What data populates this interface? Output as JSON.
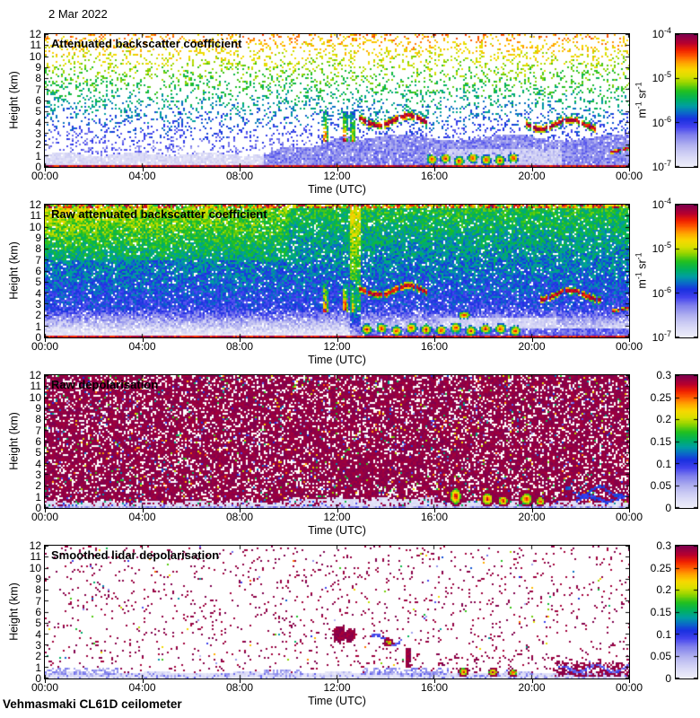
{
  "page": {
    "date_label": "2 Mar 2022",
    "footer_label": "Vehmasmaki CL61D ceilometer",
    "background_color": "#ffffff",
    "axis_color": "#000000"
  },
  "axes": {
    "time_label": "Time (UTC)",
    "time_ticks": [
      "00:00",
      "04:00",
      "08:00",
      "12:00",
      "16:00",
      "20:00",
      "00:00"
    ],
    "time_range_hours": [
      0,
      24
    ],
    "height_label": "Height (km)",
    "height_ticks": [
      "0",
      "1",
      "2",
      "3",
      "4",
      "5",
      "6",
      "7",
      "8",
      "9",
      "10",
      "11",
      "12"
    ],
    "height_range_km": [
      0,
      12
    ]
  },
  "colormap": [
    {
      "at": 0.0,
      "color": "#F0F0FA"
    },
    {
      "at": 0.08,
      "color": "#D8D8F6"
    },
    {
      "at": 0.16,
      "color": "#B4B4F0"
    },
    {
      "at": 0.24,
      "color": "#8080EC"
    },
    {
      "at": 0.3,
      "color": "#4444EE"
    },
    {
      "at": 0.36,
      "color": "#1A30E0"
    },
    {
      "at": 0.41,
      "color": "#0A6AC8"
    },
    {
      "at": 0.46,
      "color": "#00A0A0"
    },
    {
      "at": 0.51,
      "color": "#00B060"
    },
    {
      "at": 0.57,
      "color": "#20C020"
    },
    {
      "at": 0.63,
      "color": "#90D400"
    },
    {
      "at": 0.68,
      "color": "#D8E000"
    },
    {
      "at": 0.73,
      "color": "#F8D800"
    },
    {
      "at": 0.78,
      "color": "#FFA800"
    },
    {
      "at": 0.83,
      "color": "#FF6000"
    },
    {
      "at": 0.88,
      "color": "#F02000"
    },
    {
      "at": 0.93,
      "color": "#B8002E"
    },
    {
      "at": 1.0,
      "color": "#7C0050"
    }
  ],
  "chart_data": {
    "type": "heatmap",
    "x_axis": {
      "label": "Time (UTC)",
      "range_hours": [
        0,
        24
      ],
      "tick_step_hours": 4
    },
    "y_axis": {
      "label": "Height (km)",
      "range_km": [
        0,
        12
      ],
      "tick_step_km": 1
    },
    "panels": [
      {
        "title": "Attenuated backscatter coefficient",
        "pattern": "backscatter_clean",
        "colorbar": {
          "scale": "log",
          "unit": "m^-1 sr^-1",
          "tick_labels": [
            "10^-4",
            "10^-5",
            "10^-6",
            "10^-7"
          ],
          "range": [
            "1e-7",
            "1e-4"
          ]
        },
        "features": [
          {
            "kind": "virga",
            "t": [
              11.3,
              13.2
            ],
            "h": [
              2.2,
              5.0
            ]
          },
          {
            "kind": "cloud-streak",
            "t": [
              12.9,
              15.7
            ],
            "h": [
              3.6,
              4.8
            ],
            "ph": 0.5
          },
          {
            "kind": "cloud-streak",
            "t": [
              19.7,
              22.7
            ],
            "h": [
              3.3,
              4.4
            ],
            "ph": 2.1
          },
          {
            "kind": "cloud-streak",
            "t": [
              23.2,
              24.0
            ],
            "h": [
              1.3,
              1.9
            ],
            "ph": 1.0
          },
          {
            "kind": "blob-chain",
            "t": [
              15.6,
              19.5
            ],
            "h": [
              0.2,
              1.15
            ],
            "n": 7,
            "fringe": "cool"
          }
        ]
      },
      {
        "title": "Raw attenuated backscatter coefficient",
        "pattern": "backscatter_raw",
        "colorbar": {
          "scale": "log",
          "unit": "m^-1 sr^-1",
          "tick_labels": [
            "10^-4",
            "10^-5",
            "10^-6",
            "10^-7"
          ],
          "range": [
            "1e-7",
            "1e-4"
          ]
        },
        "features": [
          {
            "kind": "virga",
            "t": [
              11.3,
              13.2
            ],
            "h": [
              2.2,
              5.2
            ]
          },
          {
            "kind": "cloud-streak",
            "t": [
              12.9,
              15.7
            ],
            "h": [
              3.7,
              4.8
            ],
            "ph": 0.5
          },
          {
            "kind": "cloud-streak",
            "t": [
              20.3,
              22.8
            ],
            "h": [
              3.3,
              4.4
            ],
            "ph": 2.1
          },
          {
            "kind": "cloud-streak",
            "t": [
              23.3,
              24.0
            ],
            "h": [
              2.3,
              2.8
            ],
            "ph": 1.2
          },
          {
            "kind": "blob-chain",
            "t": [
              12.9,
              19.6
            ],
            "h": [
              0.25,
              1.2
            ],
            "n": 11,
            "fringe": "cool"
          },
          {
            "kind": "rain-blob",
            "t": [
              16.9,
              17.5
            ],
            "h": [
              1.6,
              2.4
            ],
            "fringe": "cool"
          }
        ]
      },
      {
        "title": "Raw depolarisation",
        "pattern": "depol_raw",
        "colorbar": {
          "scale": "linear",
          "unit": "",
          "tick_labels": [
            "0.3",
            "0.25",
            "0.2",
            "0.15",
            "0.1",
            "0.05",
            "0"
          ],
          "range": [
            0,
            0.3
          ]
        },
        "features": [
          {
            "kind": "dense-patch",
            "t": [
              12.1,
              15.4
            ],
            "h": [
              2.2,
              4.8
            ]
          },
          {
            "kind": "rain-blob",
            "t": [
              16.55,
              17.15
            ],
            "h": [
              0.1,
              2.0
            ],
            "fringe": "purple"
          },
          {
            "kind": "rain-blob",
            "t": [
              17.85,
              18.45
            ],
            "h": [
              0.1,
              1.5
            ],
            "fringe": "purple"
          },
          {
            "kind": "rain-blob",
            "t": [
              18.55,
              19.05
            ],
            "h": [
              0.1,
              1.2
            ],
            "fringe": "purple"
          },
          {
            "kind": "rain-blob",
            "t": [
              19.45,
              20.05
            ],
            "h": [
              0.1,
              1.5
            ],
            "fringe": "purple"
          },
          {
            "kind": "rain-blob",
            "t": [
              20.1,
              20.55
            ],
            "h": [
              0.1,
              1.1
            ],
            "fringe": "purple"
          },
          {
            "kind": "arc",
            "t": [
              21.3,
              23.7
            ],
            "h": [
              1.0,
              2.0
            ],
            "v": 0.36,
            "ph": 0.3
          },
          {
            "kind": "arc",
            "t": [
              21.8,
              23.9
            ],
            "h": [
              0.5,
              1.1
            ],
            "v": 0.33,
            "ph": 2.0
          }
        ]
      },
      {
        "title": "Smoothed lidar depolarisation",
        "pattern": "depol_smooth",
        "colorbar": {
          "scale": "linear",
          "unit": "",
          "tick_labels": [
            "0.3",
            "0.25",
            "0.2",
            "0.15",
            "0.1",
            "0.05",
            "0"
          ],
          "range": [
            0,
            0.3
          ]
        },
        "features": [
          {
            "kind": "purple-blob",
            "t": [
              11.8,
              12.35
            ],
            "h": [
              3.2,
              4.75
            ]
          },
          {
            "kind": "purple-blob",
            "t": [
              12.3,
              12.8
            ],
            "h": [
              3.3,
              4.5
            ]
          },
          {
            "kind": "arc",
            "t": [
              13.4,
              14.75
            ],
            "h": [
              3.0,
              4.05
            ],
            "v": 0.3,
            "ph": 1.1
          },
          {
            "kind": "purple-blob",
            "t": [
              13.9,
              14.35
            ],
            "h": [
              2.9,
              3.7
            ]
          },
          {
            "kind": "rain-blob",
            "t": [
              13.95,
              14.3
            ],
            "h": [
              3.05,
              3.5
            ],
            "fringe": "purple"
          },
          {
            "kind": "v-streak",
            "t": [
              14.8,
              15.05
            ],
            "h": [
              0.9,
              2.7
            ]
          },
          {
            "kind": "rain-blob",
            "t": [
              16.95,
              17.4
            ],
            "h": [
              0.15,
              1.05
            ],
            "fringe": "purple"
          },
          {
            "kind": "rain-blob",
            "t": [
              18.15,
              18.6
            ],
            "h": [
              0.15,
              1.0
            ],
            "fringe": "purple"
          },
          {
            "kind": "rain-blob",
            "t": [
              19.0,
              19.4
            ],
            "h": [
              0.15,
              0.9
            ],
            "fringe": "purple"
          },
          {
            "kind": "dense-patch",
            "t": [
              20.9,
              24.0
            ],
            "h": [
              0.2,
              1.5
            ]
          },
          {
            "kind": "arc",
            "t": [
              21.2,
              24.0
            ],
            "h": [
              0.5,
              1.3
            ],
            "v": 0.28,
            "ph": 0.8
          },
          {
            "kind": "smudge",
            "t": [
              0.0,
              3.2
            ],
            "h": [
              0.35,
              0.95
            ],
            "v": 0.2
          },
          {
            "kind": "smudge",
            "t": [
              9.0,
              10.6
            ],
            "h": [
              0.3,
              0.8
            ],
            "v": 0.2
          },
          {
            "kind": "smudge",
            "t": [
              13.0,
              16.6
            ],
            "h": [
              0.3,
              0.9
            ],
            "v": 0.22
          }
        ]
      }
    ]
  }
}
